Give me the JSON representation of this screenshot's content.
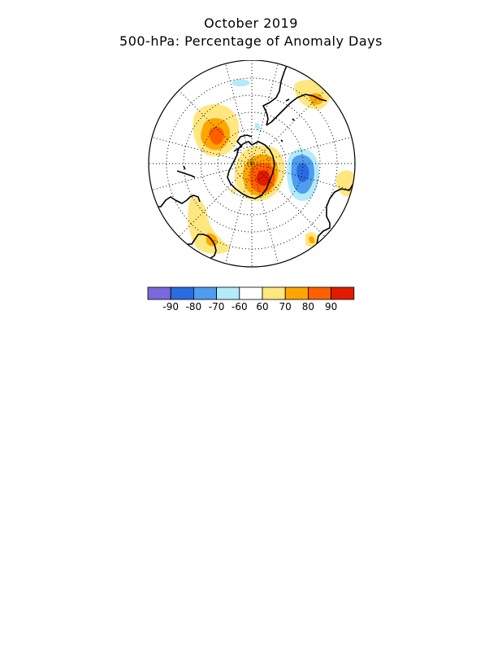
{
  "header": {
    "title": "October 2019",
    "subtitle": "500-hPa: Percentage of Anomaly Days"
  },
  "colorbar": {
    "colors": [
      "#7b68dc",
      "#2a6be0",
      "#4f9cf0",
      "#b4eafa",
      "#ffffff",
      "#ffe780",
      "#ffa500",
      "#ff5f00",
      "#e01b00"
    ],
    "labels": [
      "-90",
      "-80",
      "-70",
      "-60",
      "60",
      "70",
      "80",
      "90"
    ]
  }
}
